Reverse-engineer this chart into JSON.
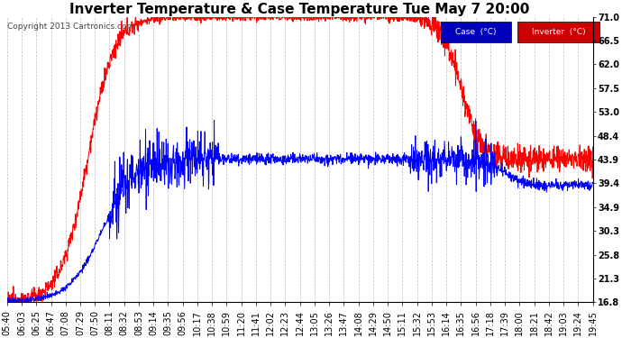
{
  "title": "Inverter Temperature & Case Temperature Tue May 7 20:00",
  "copyright": "Copyright 2013 Cartronics.com",
  "ylabel_right": [
    "71.0",
    "66.5",
    "62.0",
    "57.5",
    "53.0",
    "48.4",
    "43.9",
    "39.4",
    "34.9",
    "30.3",
    "25.8",
    "21.3",
    "16.8"
  ],
  "yticks": [
    71.0,
    66.5,
    62.0,
    57.5,
    53.0,
    48.4,
    43.9,
    39.4,
    34.9,
    30.3,
    25.8,
    21.3,
    16.8
  ],
  "ylim": [
    16.8,
    71.0
  ],
  "bg_color": "#ffffff",
  "grid_color": "#bbbbbb",
  "case_color": "#0000ff",
  "inverter_color": "#ff0000",
  "legend_case_bg": "#0000bb",
  "legend_inv_bg": "#cc0000",
  "title_fontsize": 11,
  "tick_fontsize": 7,
  "xtick_labels": [
    "05:40",
    "06:03",
    "06:25",
    "06:47",
    "07:08",
    "07:29",
    "07:50",
    "08:11",
    "08:32",
    "08:53",
    "09:14",
    "09:35",
    "09:56",
    "10:17",
    "10:38",
    "10:59",
    "11:20",
    "11:41",
    "12:02",
    "12:23",
    "12:44",
    "13:05",
    "13:26",
    "13:47",
    "14:08",
    "14:29",
    "14:50",
    "15:11",
    "15:32",
    "15:53",
    "16:14",
    "16:35",
    "16:56",
    "17:18",
    "17:39",
    "18:00",
    "18:21",
    "18:42",
    "19:03",
    "19:24",
    "19:45"
  ]
}
